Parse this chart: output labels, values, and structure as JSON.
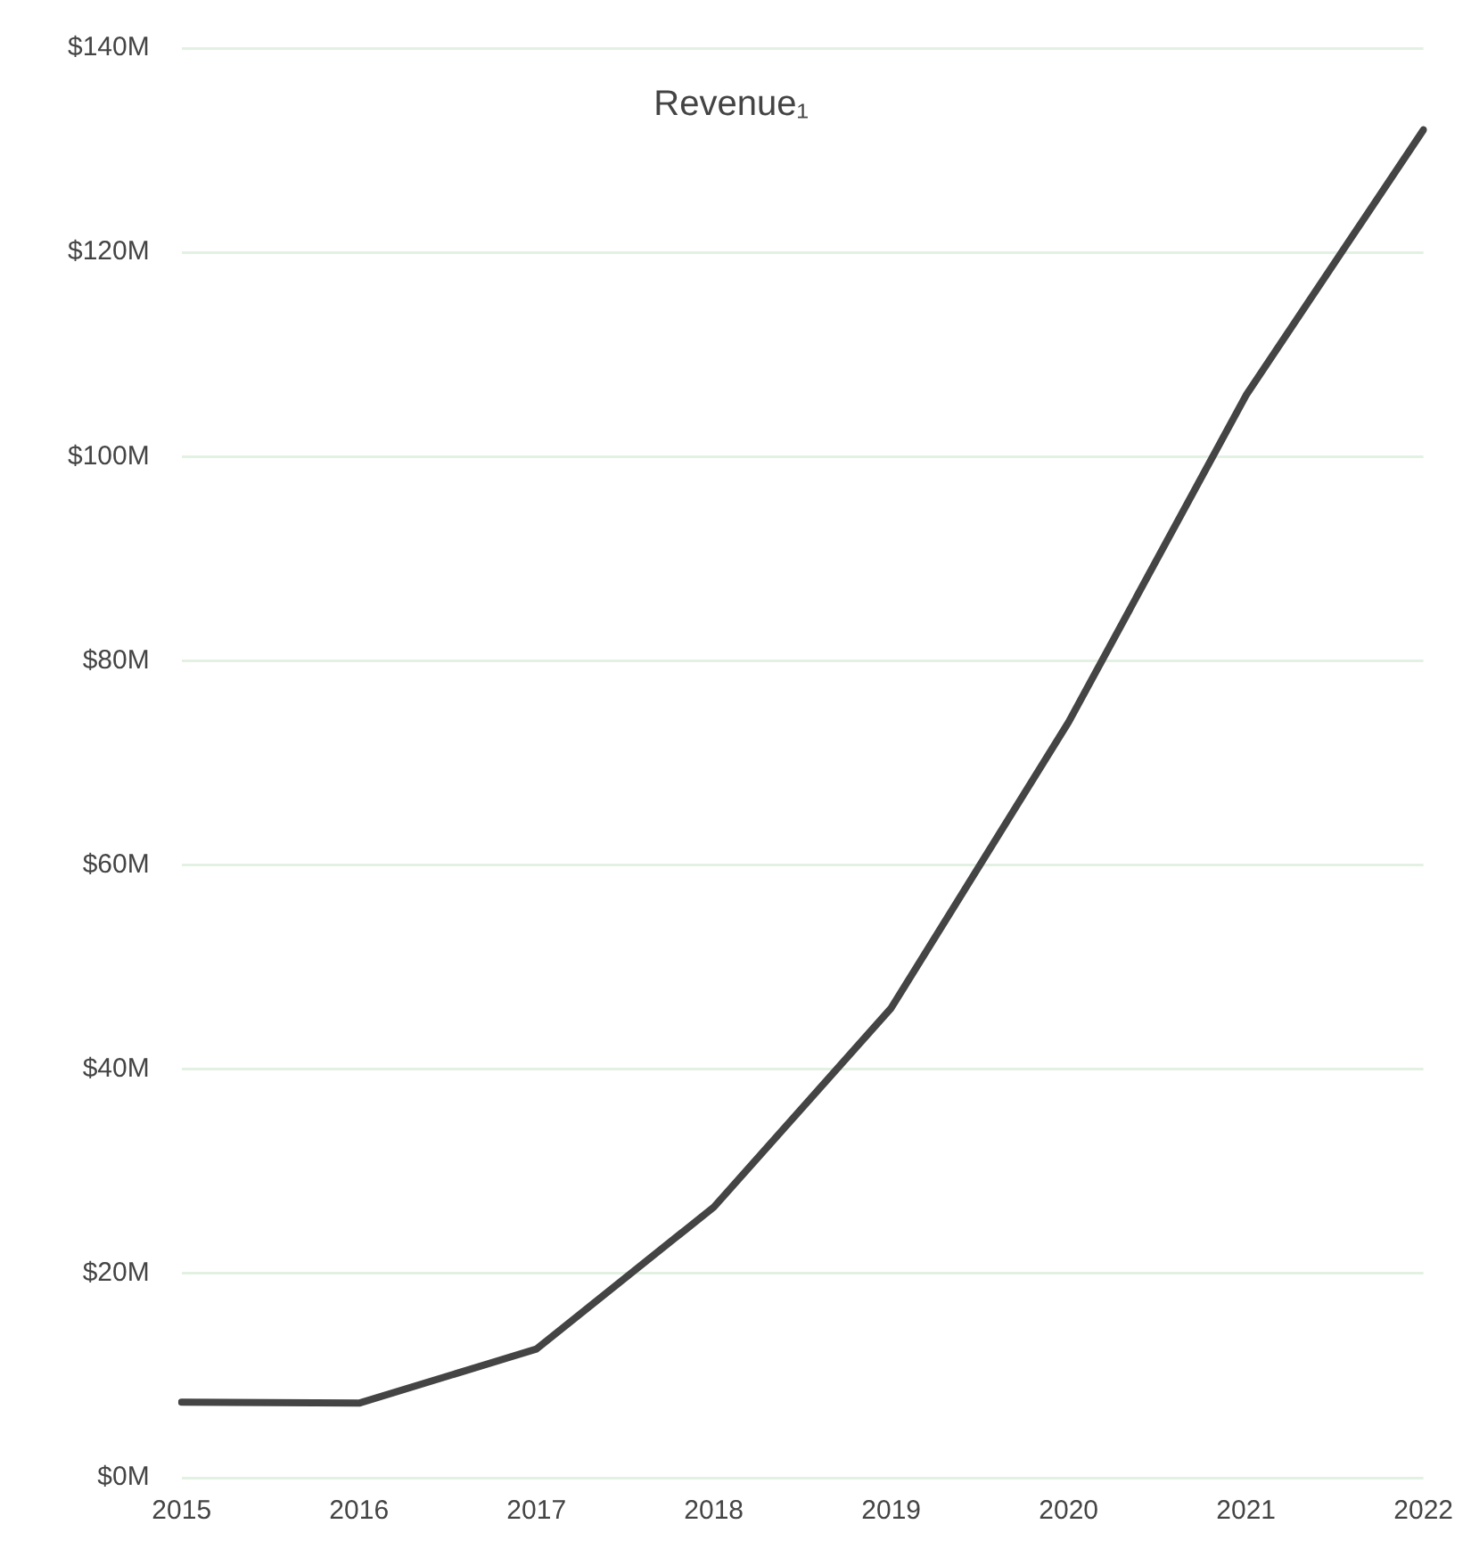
{
  "chart_data": {
    "type": "line",
    "title": "Revenue₁",
    "categories": [
      "2015",
      "2016",
      "2017",
      "2018",
      "2019",
      "2020",
      "2021",
      "2022"
    ],
    "series": [
      {
        "color": "#444444",
        "values": [
          7.4,
          7.3,
          12.6,
          26.5,
          46,
          74,
          106,
          132
        ]
      }
    ],
    "ylim": [
      0,
      140
    ],
    "yticks": [
      {
        "value": 0,
        "label": "$0M"
      },
      {
        "value": 20,
        "label": "$20M"
      },
      {
        "value": 40,
        "label": "$40M"
      },
      {
        "value": 60,
        "label": "$60M"
      },
      {
        "value": 80,
        "label": "$80M"
      },
      {
        "value": 100,
        "label": "$100M"
      },
      {
        "value": 120,
        "label": "$120M"
      },
      {
        "value": 140,
        "label": "$140M"
      }
    ],
    "grid": "y",
    "legend": false,
    "marker": "none",
    "line_style": "solid"
  }
}
